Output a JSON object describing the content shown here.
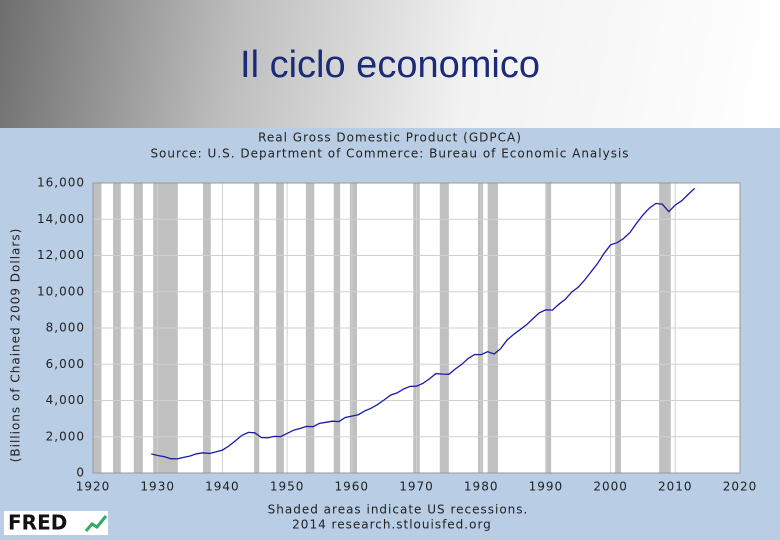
{
  "title": "Il ciclo economico",
  "logo": "FRED",
  "chart_data": {
    "type": "line",
    "title": "Real Gross Domestic Product (GDPCA)",
    "subtitle": "Source: U.S. Department of Commerce: Bureau of Economic Analysis",
    "y_label": "(Billions of Chained 2009 Dollars)",
    "notes": [
      "Shaded areas indicate US recessions.",
      "2014 research.stlouisfed.org"
    ],
    "color": "#1a1aa8",
    "recession_color": "#c0c0c0",
    "grid": true,
    "x": [
      1929,
      1930,
      1931,
      1932,
      1933,
      1934,
      1935,
      1936,
      1937,
      1938,
      1939,
      1940,
      1941,
      1942,
      1943,
      1944,
      1945,
      1946,
      1947,
      1948,
      1949,
      1950,
      1951,
      1952,
      1953,
      1954,
      1955,
      1956,
      1957,
      1958,
      1959,
      1960,
      1961,
      1962,
      1963,
      1964,
      1965,
      1966,
      1967,
      1968,
      1969,
      1970,
      1971,
      1972,
      1973,
      1974,
      1975,
      1976,
      1977,
      1978,
      1979,
      1980,
      1981,
      1982,
      1983,
      1984,
      1985,
      1986,
      1987,
      1988,
      1989,
      1990,
      1991,
      1992,
      1993,
      1994,
      1995,
      1996,
      1997,
      1998,
      1999,
      2000,
      2001,
      2002,
      2003,
      2004,
      2005,
      2006,
      2007,
      2008,
      2009,
      2010,
      2011,
      2012,
      2013
    ],
    "values": [
      1056,
      966,
      904,
      788,
      778,
      862,
      939,
      1061,
      1115,
      1078,
      1164,
      1266,
      1490,
      1772,
      2074,
      2240,
      2217,
      1960,
      1939,
      2020,
      2009,
      2184,
      2360,
      2456,
      2572,
      2557,
      2739,
      2797,
      2857,
      2836,
      3063,
      3139,
      3219,
      3425,
      3577,
      3786,
      4034,
      4300,
      4420,
      4637,
      4780,
      4789,
      4951,
      5191,
      5485,
      5455,
      5446,
      5736,
      5996,
      6322,
      6538,
      6534,
      6695,
      6564,
      6860,
      7336,
      7641,
      7906,
      8178,
      8520,
      8836,
      9005,
      8988,
      9309,
      9584,
      9984,
      10257,
      10646,
      11111,
      11567,
      12123,
      12593,
      12708,
      12931,
      13271,
      13774,
      14234,
      14614,
      14874,
      14830,
      14419,
      14784,
      15021,
      15369,
      15710
    ],
    "recessions": [
      [
        1920,
        1921.3
      ],
      [
        1923.1,
        1924.3
      ],
      [
        1926.3,
        1927.7
      ],
      [
        1929.3,
        1933.1
      ],
      [
        1937,
        1938.2
      ],
      [
        1944.9,
        1945.7
      ],
      [
        1948.3,
        1949.5
      ],
      [
        1952.9,
        1954.2
      ],
      [
        1957.2,
        1958.2
      ],
      [
        1959.7,
        1960.8
      ],
      [
        1969.5,
        1970.5
      ],
      [
        1973.6,
        1975
      ],
      [
        1979.5,
        1980.3
      ],
      [
        1981,
        1982.6
      ],
      [
        1989.9,
        1990.8
      ],
      [
        2000.7,
        2001.6
      ],
      [
        2007.5,
        2009.3
      ]
    ],
    "xlim": [
      1920,
      2020
    ],
    "xticks": [
      1920,
      1930,
      1940,
      1950,
      1960,
      1970,
      1980,
      1990,
      2000,
      2010,
      2020
    ],
    "ylim": [
      0,
      16000
    ],
    "yticks": [
      0,
      {
        "value": 2000,
        "label": "2,000"
      },
      {
        "value": 4000,
        "label": "4,000"
      },
      {
        "value": 6000,
        "label": "6,000"
      },
      {
        "value": 8000,
        "label": "8,000"
      },
      {
        "value": 10000,
        "label": "10,000"
      },
      {
        "value": 12000,
        "label": "12,000"
      },
      {
        "value": 14000,
        "label": "14,000"
      },
      {
        "value": 16000,
        "label": "16,000"
      }
    ]
  }
}
